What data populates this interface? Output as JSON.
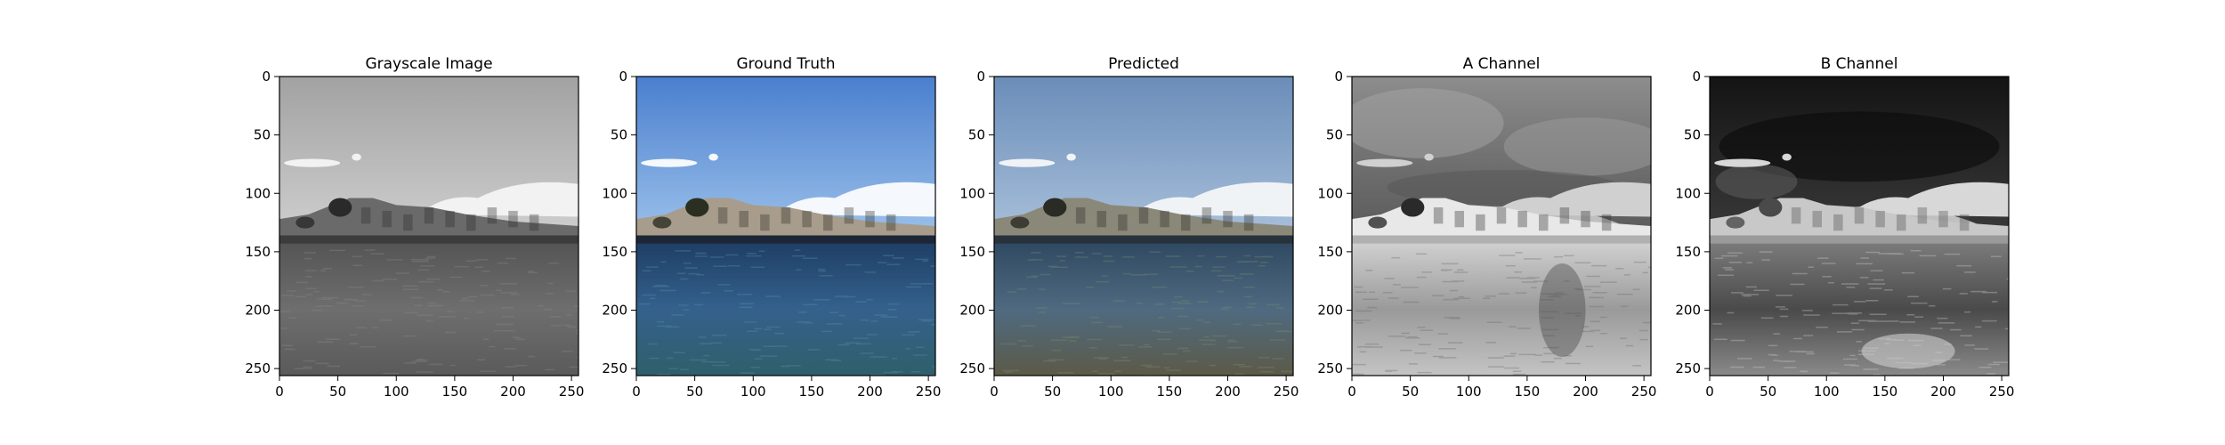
{
  "figure": {
    "panels": [
      {
        "title": "Grayscale Image",
        "kind": "grayscale"
      },
      {
        "title": "Ground Truth",
        "kind": "color"
      },
      {
        "title": "Predicted",
        "kind": "predicted"
      },
      {
        "title": "A Channel",
        "kind": "a_channel"
      },
      {
        "title": "B Channel",
        "kind": "b_channel"
      }
    ]
  },
  "chart_data": [
    {
      "type": "heatmap",
      "title": "Grayscale Image",
      "xlim": [
        0,
        256
      ],
      "ylim": [
        256,
        0
      ],
      "xticks": [
        0,
        50,
        100,
        150,
        200,
        250
      ],
      "yticks": [
        0,
        50,
        100,
        150,
        200,
        250
      ]
    },
    {
      "type": "heatmap",
      "title": "Ground Truth",
      "xlim": [
        0,
        256
      ],
      "ylim": [
        256,
        0
      ],
      "xticks": [
        0,
        50,
        100,
        150,
        200,
        250
      ],
      "yticks": [
        0,
        50,
        100,
        150,
        200,
        250
      ]
    },
    {
      "type": "heatmap",
      "title": "Predicted",
      "xlim": [
        0,
        256
      ],
      "ylim": [
        256,
        0
      ],
      "xticks": [
        0,
        50,
        100,
        150,
        200,
        250
      ],
      "yticks": [
        0,
        50,
        100,
        150,
        200,
        250
      ]
    },
    {
      "type": "heatmap",
      "title": "A Channel",
      "xlim": [
        0,
        256
      ],
      "ylim": [
        256,
        0
      ],
      "xticks": [
        0,
        50,
        100,
        150,
        200,
        250
      ],
      "yticks": [
        0,
        50,
        100,
        150,
        200,
        250
      ]
    },
    {
      "type": "heatmap",
      "title": "B Channel",
      "xlim": [
        0,
        256
      ],
      "ylim": [
        256,
        0
      ],
      "xticks": [
        0,
        50,
        100,
        150,
        200,
        250
      ],
      "yticks": [
        0,
        50,
        100,
        150,
        200,
        250
      ]
    }
  ]
}
